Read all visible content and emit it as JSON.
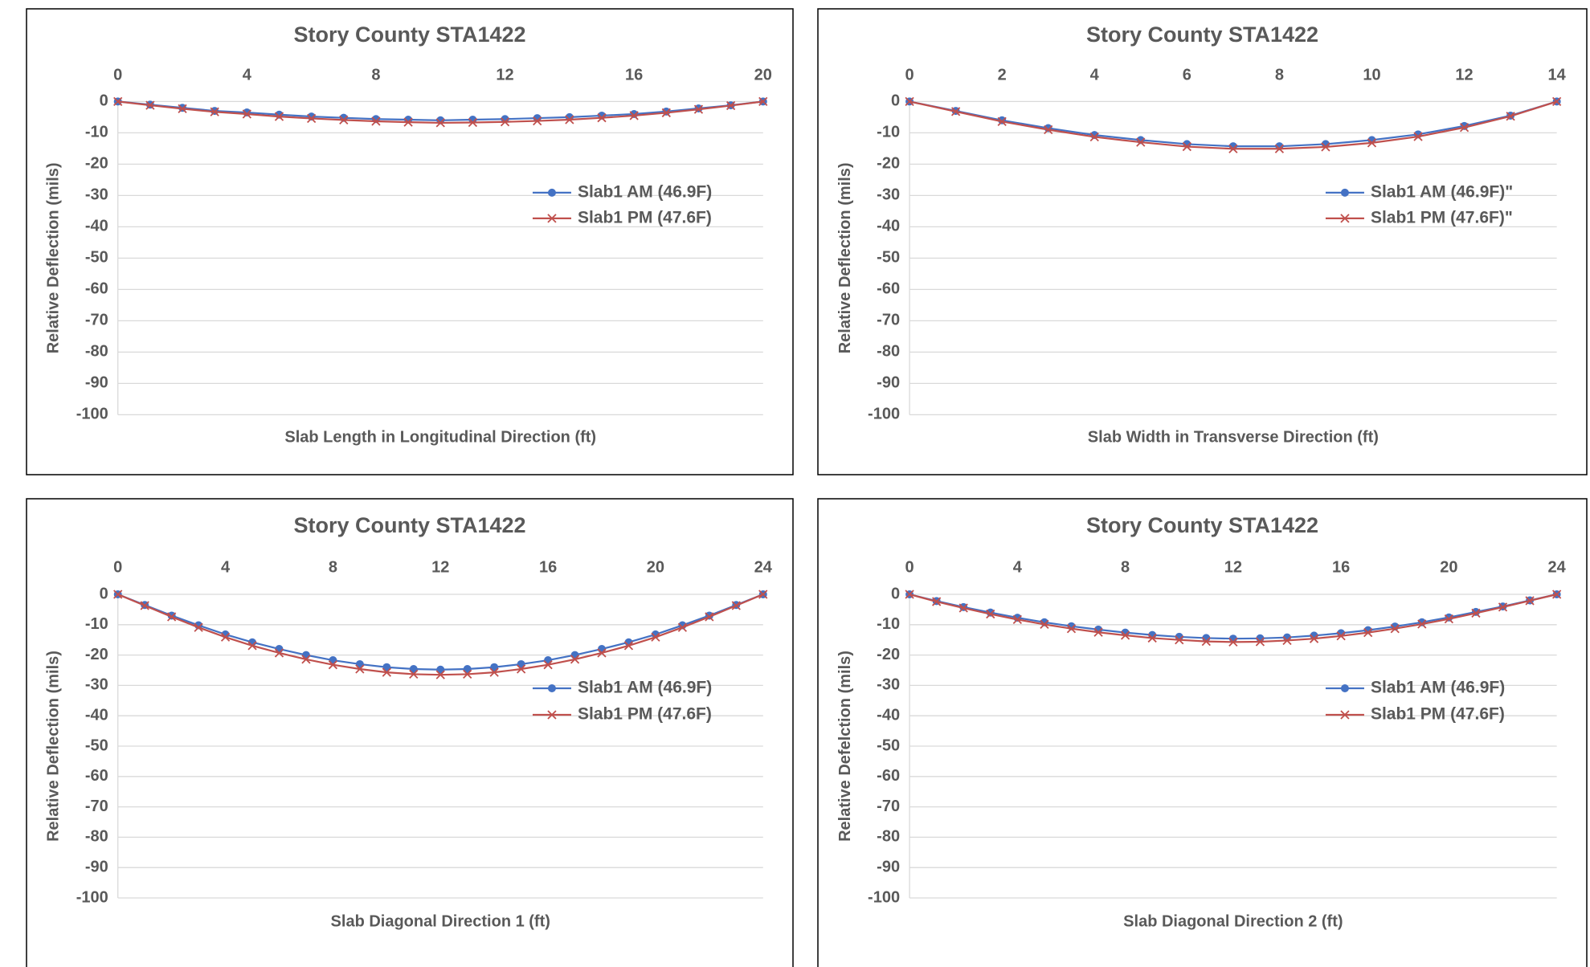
{
  "chart_data": [
    {
      "type": "line",
      "title": "Story County STA1422",
      "xlabel": "Slab Length in Longitudinal Direction (ft)",
      "ylabel": "Relative Deflection (mils)",
      "x": [
        0,
        1,
        2,
        3,
        4,
        5,
        6,
        7,
        8,
        9,
        10,
        11,
        12,
        13,
        14,
        15,
        16,
        17,
        18,
        19,
        20
      ],
      "xlim": [
        0,
        20
      ],
      "xticks": [
        0,
        4,
        8,
        12,
        16,
        20
      ],
      "ylim": [
        -100,
        0
      ],
      "yticks": [
        0,
        -10,
        -20,
        -30,
        -40,
        -50,
        -60,
        -70,
        -80,
        -90,
        -100
      ],
      "grid": true,
      "legend": "right",
      "series": [
        {
          "name": "Slab1 AM (46.9F)",
          "color": "#4472c4",
          "marker": "circle",
          "values": [
            0,
            -1,
            -2,
            -3,
            -3.5,
            -4.2,
            -4.8,
            -5.2,
            -5.6,
            -5.8,
            -6,
            -5.8,
            -5.6,
            -5.3,
            -5,
            -4.5,
            -4,
            -3.2,
            -2.2,
            -1.2,
            0
          ]
        },
        {
          "name": "Slab1 PM (47.6F)",
          "color": "#c0504d",
          "marker": "x",
          "values": [
            0,
            -1.2,
            -2.3,
            -3.3,
            -4,
            -4.8,
            -5.4,
            -5.9,
            -6.3,
            -6.6,
            -6.8,
            -6.7,
            -6.5,
            -6.2,
            -5.8,
            -5.2,
            -4.5,
            -3.6,
            -2.5,
            -1.3,
            0
          ]
        }
      ]
    },
    {
      "type": "line",
      "title": "Story County STA1422",
      "xlabel": "Slab Width in Transverse Direction (ft)",
      "ylabel": "Relative Deflection (mils)",
      "x": [
        0,
        1,
        2,
        3,
        4,
        5,
        6,
        7,
        8,
        9,
        10,
        11,
        12,
        13,
        14
      ],
      "xlim": [
        0,
        14
      ],
      "xticks": [
        0,
        2,
        4,
        6,
        8,
        10,
        12,
        14
      ],
      "ylim": [
        -100,
        0
      ],
      "yticks": [
        0,
        -10,
        -20,
        -30,
        -40,
        -50,
        -60,
        -70,
        -80,
        -90,
        -100
      ],
      "grid": true,
      "legend": "right",
      "series": [
        {
          "name": "Slab1 AM (46.9F)\"",
          "color": "#4472c4",
          "marker": "circle",
          "values": [
            0,
            -3,
            -6,
            -8.5,
            -10.7,
            -12.3,
            -13.6,
            -14.3,
            -14.3,
            -13.6,
            -12.3,
            -10.5,
            -7.8,
            -4.5,
            0
          ]
        },
        {
          "name": "Slab1 PM (47.6F)\"",
          "color": "#c0504d",
          "marker": "x",
          "values": [
            0,
            -3.2,
            -6.4,
            -9,
            -11.3,
            -13,
            -14.4,
            -15.1,
            -15.1,
            -14.5,
            -13.2,
            -11.2,
            -8.3,
            -4.7,
            0
          ]
        }
      ]
    },
    {
      "type": "line",
      "title": "Story County STA1422",
      "xlabel": "Slab Diagonal Direction 1 (ft)",
      "ylabel": "Relative Deflection (mils)",
      "x": [
        0,
        1,
        2,
        3,
        4,
        5,
        6,
        7,
        8,
        9,
        10,
        11,
        12,
        13,
        14,
        15,
        16,
        17,
        18,
        19,
        20,
        21,
        22,
        23,
        24
      ],
      "xlim": [
        0,
        24
      ],
      "xticks": [
        0,
        4,
        8,
        12,
        16,
        20,
        24
      ],
      "ylim": [
        -100,
        0
      ],
      "yticks": [
        0,
        -10,
        -20,
        -30,
        -40,
        -50,
        -60,
        -70,
        -80,
        -90,
        -100
      ],
      "grid": true,
      "legend": "right",
      "series": [
        {
          "name": "Slab1 AM (46.9F)",
          "color": "#4472c4",
          "marker": "circle",
          "values": [
            0,
            -3.5,
            -7,
            -10.2,
            -13.2,
            -15.8,
            -18,
            -20,
            -21.7,
            -23,
            -24,
            -24.6,
            -24.8,
            -24.6,
            -24,
            -23,
            -21.7,
            -20,
            -18,
            -15.8,
            -13.2,
            -10.2,
            -7,
            -3.5,
            0
          ]
        },
        {
          "name": "Slab1 PM (47.6F)",
          "color": "#c0504d",
          "marker": "x",
          "values": [
            0,
            -3.7,
            -7.4,
            -10.9,
            -14.1,
            -16.9,
            -19.3,
            -21.4,
            -23.2,
            -24.6,
            -25.7,
            -26.3,
            -26.5,
            -26.3,
            -25.7,
            -24.6,
            -23.2,
            -21.4,
            -19.3,
            -16.9,
            -14.1,
            -10.9,
            -7.4,
            -3.7,
            0
          ]
        }
      ]
    },
    {
      "type": "line",
      "title": "Story County STA1422",
      "xlabel": "Slab Diagonal Direction 2 (ft)",
      "ylabel": "Relative Defelction (mils)",
      "x": [
        0,
        1,
        2,
        3,
        4,
        5,
        6,
        7,
        8,
        9,
        10,
        11,
        12,
        13,
        14,
        15,
        16,
        17,
        18,
        19,
        20,
        21,
        22,
        23,
        24
      ],
      "xlim": [
        0,
        24
      ],
      "xticks": [
        0,
        4,
        8,
        12,
        16,
        20,
        24
      ],
      "ylim": [
        -100,
        0
      ],
      "yticks": [
        0,
        -10,
        -20,
        -30,
        -40,
        -50,
        -60,
        -70,
        -80,
        -90,
        -100
      ],
      "grid": true,
      "legend": "right",
      "series": [
        {
          "name": "Slab1 AM (46.9F)",
          "color": "#4472c4",
          "marker": "circle",
          "values": [
            0,
            -2.2,
            -4.2,
            -6,
            -7.7,
            -9.2,
            -10.5,
            -11.6,
            -12.6,
            -13.4,
            -14,
            -14.4,
            -14.6,
            -14.5,
            -14.2,
            -13.6,
            -12.8,
            -11.8,
            -10.6,
            -9.2,
            -7.6,
            -5.8,
            -4,
            -2,
            0
          ]
        },
        {
          "name": "Slab1 PM (47.6F)",
          "color": "#c0504d",
          "marker": "x",
          "values": [
            0,
            -2.4,
            -4.5,
            -6.5,
            -8.3,
            -9.9,
            -11.3,
            -12.5,
            -13.5,
            -14.4,
            -15,
            -15.5,
            -15.7,
            -15.6,
            -15.2,
            -14.6,
            -13.7,
            -12.6,
            -11.3,
            -9.8,
            -8.1,
            -6.2,
            -4.2,
            -2.1,
            0
          ]
        }
      ]
    }
  ]
}
